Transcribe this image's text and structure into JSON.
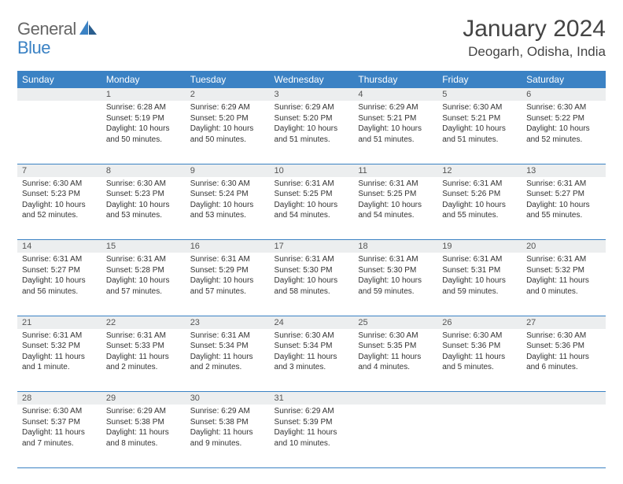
{
  "brand": {
    "general": "General",
    "blue": "Blue"
  },
  "title": "January 2024",
  "location": "Deogarh, Odisha, India",
  "header_bg": "#3b82c4",
  "header_fg": "#ffffff",
  "daynum_bg": "#eceeef",
  "border_color": "#3b82c4",
  "weekdays": [
    "Sunday",
    "Monday",
    "Tuesday",
    "Wednesday",
    "Thursday",
    "Friday",
    "Saturday"
  ],
  "weeks": [
    [
      {
        "n": "",
        "sr": "",
        "ss": "",
        "dl": ""
      },
      {
        "n": "1",
        "sr": "Sunrise: 6:28 AM",
        "ss": "Sunset: 5:19 PM",
        "dl": "Daylight: 10 hours and 50 minutes."
      },
      {
        "n": "2",
        "sr": "Sunrise: 6:29 AM",
        "ss": "Sunset: 5:20 PM",
        "dl": "Daylight: 10 hours and 50 minutes."
      },
      {
        "n": "3",
        "sr": "Sunrise: 6:29 AM",
        "ss": "Sunset: 5:20 PM",
        "dl": "Daylight: 10 hours and 51 minutes."
      },
      {
        "n": "4",
        "sr": "Sunrise: 6:29 AM",
        "ss": "Sunset: 5:21 PM",
        "dl": "Daylight: 10 hours and 51 minutes."
      },
      {
        "n": "5",
        "sr": "Sunrise: 6:30 AM",
        "ss": "Sunset: 5:21 PM",
        "dl": "Daylight: 10 hours and 51 minutes."
      },
      {
        "n": "6",
        "sr": "Sunrise: 6:30 AM",
        "ss": "Sunset: 5:22 PM",
        "dl": "Daylight: 10 hours and 52 minutes."
      }
    ],
    [
      {
        "n": "7",
        "sr": "Sunrise: 6:30 AM",
        "ss": "Sunset: 5:23 PM",
        "dl": "Daylight: 10 hours and 52 minutes."
      },
      {
        "n": "8",
        "sr": "Sunrise: 6:30 AM",
        "ss": "Sunset: 5:23 PM",
        "dl": "Daylight: 10 hours and 53 minutes."
      },
      {
        "n": "9",
        "sr": "Sunrise: 6:30 AM",
        "ss": "Sunset: 5:24 PM",
        "dl": "Daylight: 10 hours and 53 minutes."
      },
      {
        "n": "10",
        "sr": "Sunrise: 6:31 AM",
        "ss": "Sunset: 5:25 PM",
        "dl": "Daylight: 10 hours and 54 minutes."
      },
      {
        "n": "11",
        "sr": "Sunrise: 6:31 AM",
        "ss": "Sunset: 5:25 PM",
        "dl": "Daylight: 10 hours and 54 minutes."
      },
      {
        "n": "12",
        "sr": "Sunrise: 6:31 AM",
        "ss": "Sunset: 5:26 PM",
        "dl": "Daylight: 10 hours and 55 minutes."
      },
      {
        "n": "13",
        "sr": "Sunrise: 6:31 AM",
        "ss": "Sunset: 5:27 PM",
        "dl": "Daylight: 10 hours and 55 minutes."
      }
    ],
    [
      {
        "n": "14",
        "sr": "Sunrise: 6:31 AM",
        "ss": "Sunset: 5:27 PM",
        "dl": "Daylight: 10 hours and 56 minutes."
      },
      {
        "n": "15",
        "sr": "Sunrise: 6:31 AM",
        "ss": "Sunset: 5:28 PM",
        "dl": "Daylight: 10 hours and 57 minutes."
      },
      {
        "n": "16",
        "sr": "Sunrise: 6:31 AM",
        "ss": "Sunset: 5:29 PM",
        "dl": "Daylight: 10 hours and 57 minutes."
      },
      {
        "n": "17",
        "sr": "Sunrise: 6:31 AM",
        "ss": "Sunset: 5:30 PM",
        "dl": "Daylight: 10 hours and 58 minutes."
      },
      {
        "n": "18",
        "sr": "Sunrise: 6:31 AM",
        "ss": "Sunset: 5:30 PM",
        "dl": "Daylight: 10 hours and 59 minutes."
      },
      {
        "n": "19",
        "sr": "Sunrise: 6:31 AM",
        "ss": "Sunset: 5:31 PM",
        "dl": "Daylight: 10 hours and 59 minutes."
      },
      {
        "n": "20",
        "sr": "Sunrise: 6:31 AM",
        "ss": "Sunset: 5:32 PM",
        "dl": "Daylight: 11 hours and 0 minutes."
      }
    ],
    [
      {
        "n": "21",
        "sr": "Sunrise: 6:31 AM",
        "ss": "Sunset: 5:32 PM",
        "dl": "Daylight: 11 hours and 1 minute."
      },
      {
        "n": "22",
        "sr": "Sunrise: 6:31 AM",
        "ss": "Sunset: 5:33 PM",
        "dl": "Daylight: 11 hours and 2 minutes."
      },
      {
        "n": "23",
        "sr": "Sunrise: 6:31 AM",
        "ss": "Sunset: 5:34 PM",
        "dl": "Daylight: 11 hours and 2 minutes."
      },
      {
        "n": "24",
        "sr": "Sunrise: 6:30 AM",
        "ss": "Sunset: 5:34 PM",
        "dl": "Daylight: 11 hours and 3 minutes."
      },
      {
        "n": "25",
        "sr": "Sunrise: 6:30 AM",
        "ss": "Sunset: 5:35 PM",
        "dl": "Daylight: 11 hours and 4 minutes."
      },
      {
        "n": "26",
        "sr": "Sunrise: 6:30 AM",
        "ss": "Sunset: 5:36 PM",
        "dl": "Daylight: 11 hours and 5 minutes."
      },
      {
        "n": "27",
        "sr": "Sunrise: 6:30 AM",
        "ss": "Sunset: 5:36 PM",
        "dl": "Daylight: 11 hours and 6 minutes."
      }
    ],
    [
      {
        "n": "28",
        "sr": "Sunrise: 6:30 AM",
        "ss": "Sunset: 5:37 PM",
        "dl": "Daylight: 11 hours and 7 minutes."
      },
      {
        "n": "29",
        "sr": "Sunrise: 6:29 AM",
        "ss": "Sunset: 5:38 PM",
        "dl": "Daylight: 11 hours and 8 minutes."
      },
      {
        "n": "30",
        "sr": "Sunrise: 6:29 AM",
        "ss": "Sunset: 5:38 PM",
        "dl": "Daylight: 11 hours and 9 minutes."
      },
      {
        "n": "31",
        "sr": "Sunrise: 6:29 AM",
        "ss": "Sunset: 5:39 PM",
        "dl": "Daylight: 11 hours and 10 minutes."
      },
      {
        "n": "",
        "sr": "",
        "ss": "",
        "dl": ""
      },
      {
        "n": "",
        "sr": "",
        "ss": "",
        "dl": ""
      },
      {
        "n": "",
        "sr": "",
        "ss": "",
        "dl": ""
      }
    ]
  ]
}
